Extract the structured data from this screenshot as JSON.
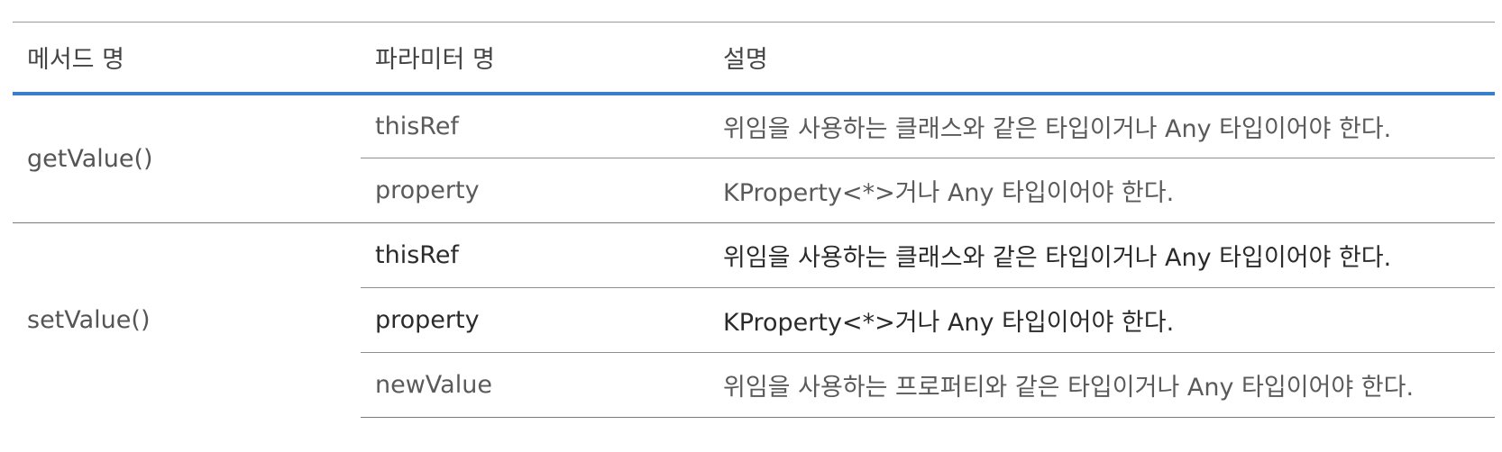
{
  "headers": {
    "method": "메서드 명",
    "param": "파라미터 명",
    "desc": "설명"
  },
  "groups": [
    {
      "method": "getValue()",
      "rows": [
        {
          "param": "thisRef",
          "desc": "위임을 사용하는 클래스와 같은 타입이거나 Any 타입이어야 한다."
        },
        {
          "param": "property",
          "desc": "KProperty<*>거나 Any 타입이어야 한다."
        }
      ]
    },
    {
      "method": "setValue()",
      "rows": [
        {
          "param": "thisRef",
          "desc": "위임을 사용하는 클래스와 같은 타입이거나 Any 타입이어야 한다."
        },
        {
          "param": "property",
          "desc": "KProperty<*>거나 Any 타입이어야 한다."
        },
        {
          "param": "newValue",
          "desc": "위임을 사용하는 프로퍼티와 같은 타입이거나 Any 타입이어야 한다."
        }
      ]
    }
  ],
  "colors": {
    "header_rule": "#3a7ecf",
    "text": "#555555",
    "text_dark": "#2b2b2b"
  }
}
